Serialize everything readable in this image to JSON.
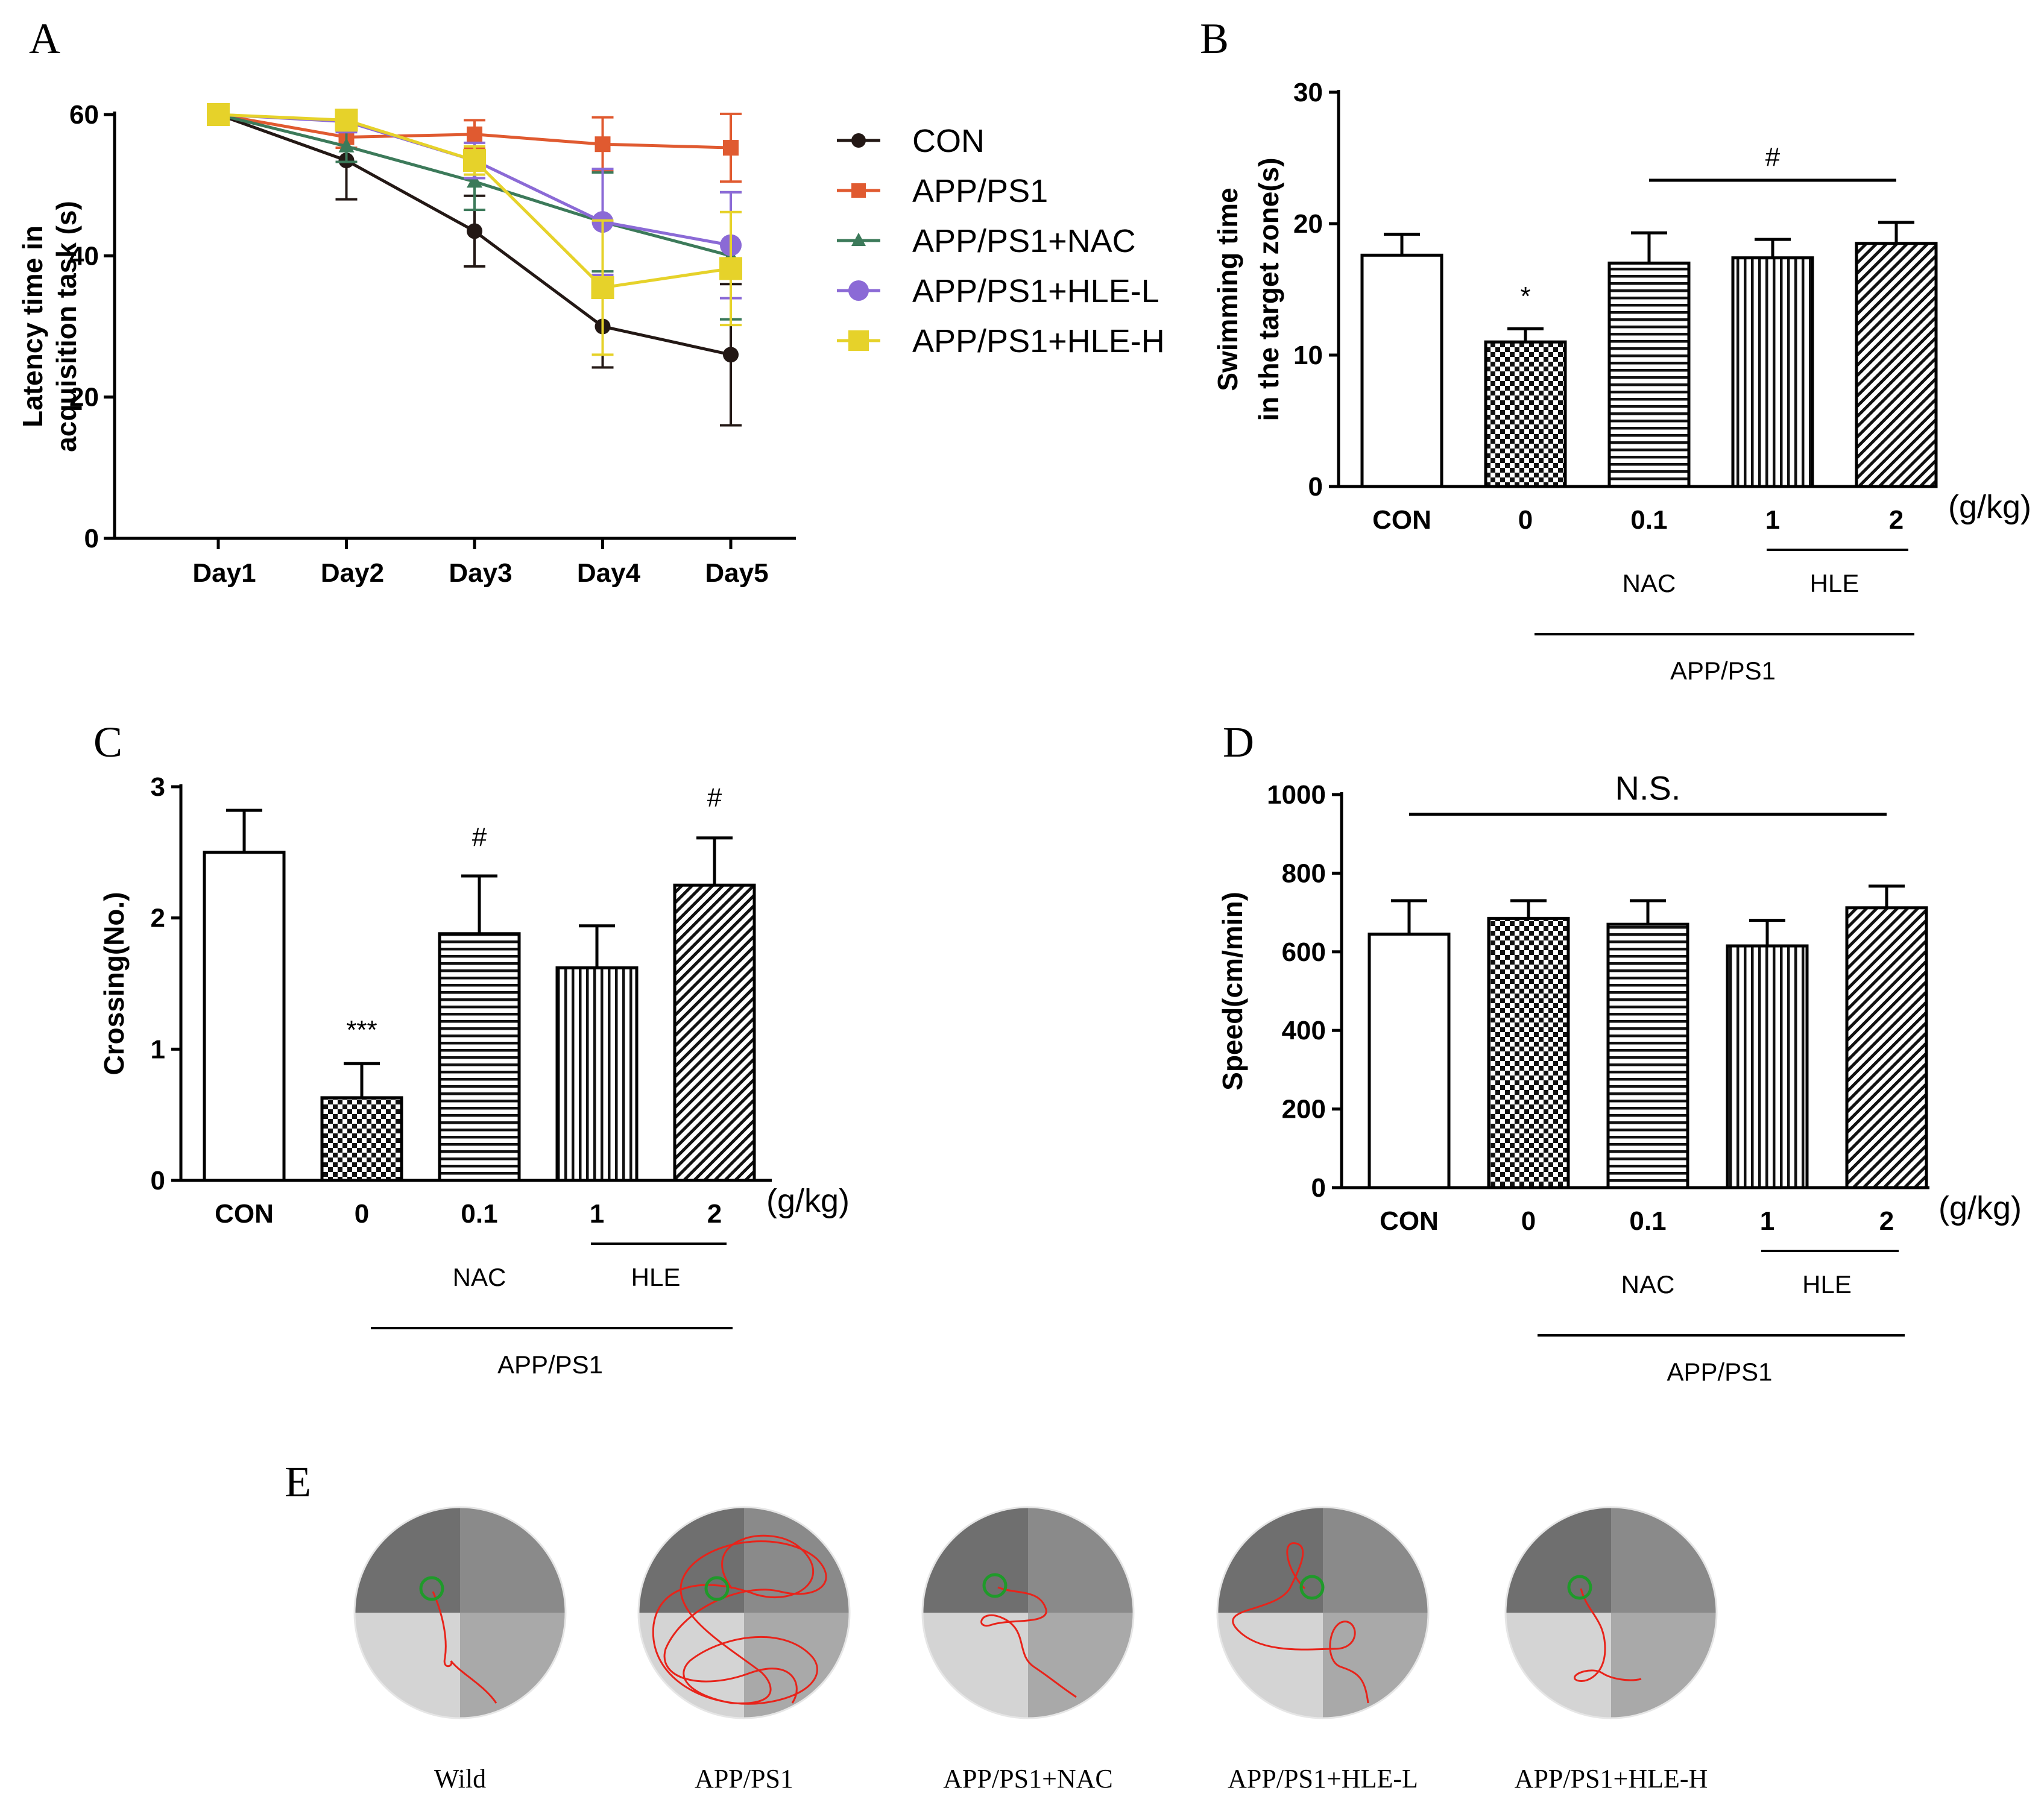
{
  "chart_data": [
    {
      "panel": "A",
      "type": "line",
      "ylabel": "Latency time in acquisition task (s)",
      "ylabel_lines": [
        "Latency time in",
        "acquisition task (s)"
      ],
      "xlabel": "",
      "categories": [
        "Day1",
        "Day2",
        "Day3",
        "Day4",
        "Day5"
      ],
      "ylim": [
        0,
        60
      ],
      "yticks": [
        0,
        20,
        40,
        60
      ],
      "legend_position": "right",
      "series": [
        {
          "name": "CON",
          "color": "#231815",
          "marker": "circle",
          "values": [
            60,
            53.5,
            43.5,
            30,
            26
          ],
          "err": [
            0,
            5.5,
            5,
            5.8,
            10
          ]
        },
        {
          "name": "APP/PS1",
          "color": "#e05a30",
          "marker": "square",
          "values": [
            60,
            56.8,
            57.2,
            55.8,
            55.3
          ],
          "err": [
            0,
            1.5,
            2,
            3.8,
            4.8
          ]
        },
        {
          "name": "APP/PS1+NAC",
          "color": "#3c7a5a",
          "marker": "triangle",
          "values": [
            60,
            55.5,
            50.5,
            44.8,
            40
          ],
          "err": [
            0,
            2.2,
            4,
            7,
            9
          ]
        },
        {
          "name": "APP/PS1+HLE-L",
          "color": "#8b6ad6",
          "marker": "circle",
          "values": [
            60,
            59,
            53.5,
            44.8,
            41.5
          ],
          "err": [
            0,
            1.5,
            2.5,
            7.5,
            7.5
          ]
        },
        {
          "name": "APP/PS1+HLE-H",
          "color": "#e6d22a",
          "marker": "square",
          "values": [
            60,
            59.2,
            53.5,
            35.5,
            38.2
          ],
          "err": [
            0,
            1.2,
            2,
            9.5,
            8
          ]
        }
      ]
    },
    {
      "panel": "B",
      "type": "bar",
      "ylabel": "Swimming time in the target zone(s)",
      "ylabel_lines": [
        "Swimming time",
        "in the target zone(s)"
      ],
      "categories": [
        "CON",
        "0",
        "0.1",
        "1",
        "2"
      ],
      "unit": "(g/kg)",
      "values": [
        17.6,
        11,
        17,
        17.4,
        18.5
      ],
      "err": [
        1.6,
        1,
        2.3,
        1.4,
        1.6
      ],
      "patterns": [
        "empty",
        "checker",
        "hlines",
        "vlines",
        "diag"
      ],
      "ylim": [
        0,
        30
      ],
      "yticks": [
        0,
        10,
        20,
        30
      ],
      "annotations": [
        {
          "text": "*",
          "category": "0",
          "y": 13.8
        },
        {
          "text": "#",
          "from": "0.1",
          "to": "2",
          "y": 23.3
        }
      ],
      "groups": [
        {
          "label": "NAC",
          "from": "0.1",
          "to": "0.1"
        },
        {
          "label": "HLE",
          "from": "1",
          "to": "2"
        },
        {
          "label": "APP/PS1",
          "from": "0",
          "to": "2"
        }
      ]
    },
    {
      "panel": "C",
      "type": "bar",
      "ylabel": "Crossing(No.)",
      "categories": [
        "CON",
        "0",
        "0.1",
        "1",
        "2"
      ],
      "unit": "(g/kg)",
      "values": [
        2.5,
        0.63,
        1.88,
        1.62,
        2.25
      ],
      "err": [
        0.32,
        0.26,
        0.44,
        0.32,
        0.36
      ],
      "patterns": [
        "empty",
        "checker",
        "hlines",
        "vlines",
        "diag"
      ],
      "ylim": [
        0,
        3
      ],
      "yticks": [
        0,
        1,
        2,
        3
      ],
      "annotations": [
        {
          "text": "***",
          "category": "0",
          "y": 1.08
        },
        {
          "text": "#",
          "category": "0.1",
          "y": 2.55
        },
        {
          "text": "#",
          "category": "2",
          "y": 2.85
        }
      ],
      "groups": [
        {
          "label": "NAC",
          "from": "0.1",
          "to": "0.1"
        },
        {
          "label": "HLE",
          "from": "1",
          "to": "2"
        },
        {
          "label": "APP/PS1",
          "from": "0",
          "to": "2"
        }
      ]
    },
    {
      "panel": "D",
      "type": "bar",
      "ylabel": "Speed(cm/min)",
      "categories": [
        "CON",
        "0",
        "0.1",
        "1",
        "2"
      ],
      "unit": "(g/kg)",
      "values": [
        645,
        685,
        670,
        615,
        712
      ],
      "err": [
        85,
        45,
        60,
        65,
        55
      ],
      "patterns": [
        "empty",
        "checker",
        "hlines",
        "vlines",
        "diag"
      ],
      "ylim": [
        0,
        1000
      ],
      "yticks": [
        0,
        200,
        400,
        600,
        800,
        1000
      ],
      "annotations": [
        {
          "text": "N.S.",
          "from": "CON",
          "to": "2",
          "y": 950
        }
      ],
      "groups": [
        {
          "label": "NAC",
          "from": "0.1",
          "to": "0.1"
        },
        {
          "label": "HLE",
          "from": "1",
          "to": "2"
        },
        {
          "label": "APP/PS1",
          "from": "0",
          "to": "2"
        }
      ]
    }
  ],
  "panel_e": {
    "label": "E",
    "captions": [
      "Wild",
      "APP/PS1",
      "APP/PS1+NAC",
      "APP/PS1+HLE-L",
      "APP/PS1+HLE-H"
    ]
  },
  "panel_labels": [
    "A",
    "B",
    "C",
    "D"
  ],
  "colors": {
    "quadrant_dark": "#6f6f6f",
    "quadrant_mid": "#8a8a8a",
    "quadrant_light": "#d4d4d4",
    "quadrant_light2": "#a9a9a9",
    "path": "#e8231a",
    "platform": "#1f9a2a"
  }
}
